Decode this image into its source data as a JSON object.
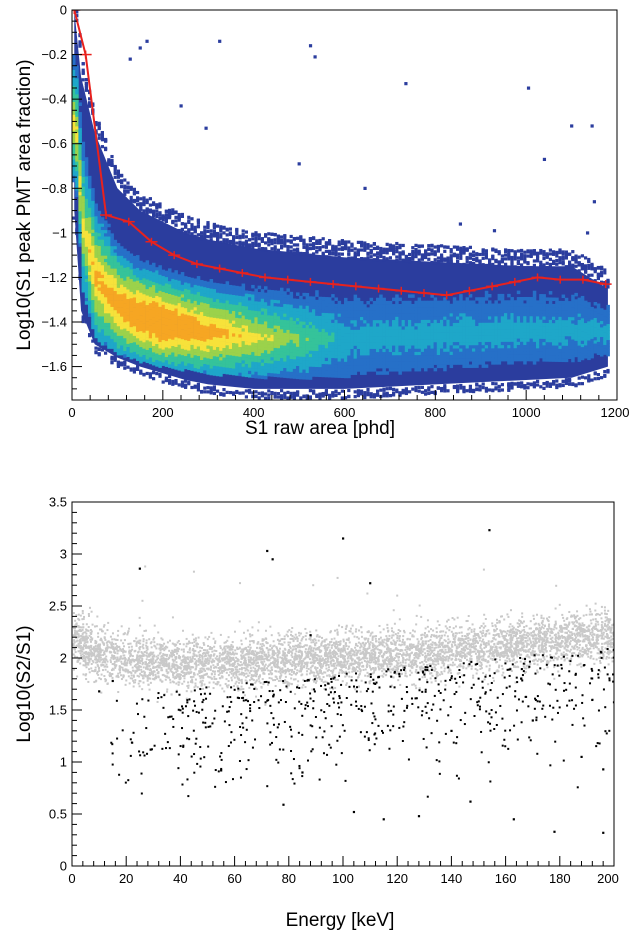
{
  "chart_data": [
    {
      "type": "heatmap",
      "xlabel": "S1 raw area [phd]",
      "ylabel": "Log10(S1 peak PMT area fraction)",
      "xlim": [
        0,
        1200
      ],
      "ylim": [
        -1.75,
        0
      ],
      "x_ticks": [
        "0",
        "200",
        "400",
        "600",
        "800",
        "1000",
        "1200"
      ],
      "y_ticks": [
        "0",
        "−0.2",
        "−0.4",
        "−0.6",
        "−0.8",
        "−1",
        "−1.2",
        "−1.4",
        "−1.6"
      ],
      "grid": false,
      "legend": "none",
      "colormap": [
        "#2b3d9e",
        "#2670c8",
        "#1ea7c9",
        "#35c39a",
        "#9bd24b",
        "#f7e23a",
        "#f6a623"
      ],
      "density_band": {
        "x": [
          5,
          20,
          50,
          100,
          150,
          200,
          250,
          300,
          400,
          500,
          600,
          700,
          800,
          900,
          1000,
          1100,
          1180
        ],
        "center": [
          -0.5,
          -0.95,
          -1.2,
          -1.32,
          -1.37,
          -1.4,
          -1.42,
          -1.44,
          -1.46,
          -1.47,
          -1.47,
          -1.46,
          -1.45,
          -1.44,
          -1.43,
          -1.43,
          -1.44
        ],
        "upper": [
          0,
          -0.3,
          -0.55,
          -0.8,
          -0.9,
          -0.95,
          -1.0,
          -1.03,
          -1.07,
          -1.09,
          -1.11,
          -1.12,
          -1.13,
          -1.14,
          -1.15,
          -1.15,
          -1.25
        ],
        "lower": [
          -0.9,
          -1.35,
          -1.5,
          -1.56,
          -1.6,
          -1.63,
          -1.66,
          -1.68,
          -1.7,
          -1.7,
          -1.7,
          -1.69,
          -1.68,
          -1.67,
          -1.66,
          -1.65,
          -1.6
        ]
      },
      "outliers": [
        {
          "x": 165,
          "y": -0.14
        },
        {
          "x": 150,
          "y": -0.17
        },
        {
          "x": 128,
          "y": -0.22
        },
        {
          "x": 325,
          "y": -0.14
        },
        {
          "x": 525,
          "y": -0.16
        },
        {
          "x": 535,
          "y": -0.21
        },
        {
          "x": 735,
          "y": -0.33
        },
        {
          "x": 500,
          "y": -0.69
        },
        {
          "x": 1040,
          "y": -0.67
        },
        {
          "x": 1100,
          "y": -0.52
        },
        {
          "x": 1145,
          "y": -0.52
        },
        {
          "x": 1150,
          "y": -0.86
        },
        {
          "x": 1135,
          "y": -1.0
        },
        {
          "x": 295,
          "y": -0.53
        },
        {
          "x": 240,
          "y": -0.43
        },
        {
          "x": 855,
          "y": -0.96
        },
        {
          "x": 930,
          "y": -0.99
        },
        {
          "x": 645,
          "y": -0.8
        },
        {
          "x": 1005,
          "y": -0.35
        }
      ],
      "series": [
        {
          "x": [
            5,
            30,
            75,
            125,
            175,
            225,
            275,
            325,
            375,
            425,
            475,
            525,
            575,
            625,
            675,
            725,
            775,
            825,
            875,
            925,
            975,
            1025,
            1075,
            1125,
            1175
          ],
          "y": [
            0,
            -0.2,
            -0.92,
            -0.95,
            -1.04,
            -1.1,
            -1.14,
            -1.16,
            -1.18,
            -1.2,
            -1.21,
            -1.22,
            -1.23,
            -1.24,
            -1.25,
            -1.26,
            -1.27,
            -1.28,
            -1.26,
            -1.24,
            -1.22,
            -1.2,
            -1.21,
            -1.21,
            -1.23
          ],
          "color": "#e8221e"
        }
      ]
    },
    {
      "type": "scatter",
      "xlabel": "Energy [keV]",
      "ylabel": "Log10(S2/S1)",
      "xlim": [
        0,
        200
      ],
      "ylim": [
        0,
        3.5
      ],
      "x_ticks": [
        "0",
        "20",
        "40",
        "60",
        "80",
        "100",
        "120",
        "140",
        "160",
        "180",
        "200"
      ],
      "y_ticks": [
        "0",
        "0.5",
        "1",
        "1.5",
        "2",
        "2.5",
        "3",
        "3.5"
      ],
      "grid": false,
      "legend": "none",
      "series": [
        {
          "color": "#c9c9c9",
          "band": {
            "x": [
              1,
              5,
              10,
              20,
              40,
              60,
              80,
              100,
              120,
              140,
              160,
              180,
              200
            ],
            "center": [
              2.2,
              2.1,
              2.02,
              1.98,
              1.95,
              1.95,
              1.97,
              2.0,
              2.03,
              2.07,
              2.12,
              2.18,
              2.22
            ],
            "spread": [
              0.25,
              0.25,
              0.25,
              0.23,
              0.22,
              0.22,
              0.22,
              0.22,
              0.22,
              0.22,
              0.22,
              0.22,
              0.22
            ]
          },
          "sparse_points": [
            {
              "x": 27,
              "y": 2.88
            },
            {
              "x": 45,
              "y": 2.83
            },
            {
              "x": 62,
              "y": 2.72
            },
            {
              "x": 89,
              "y": 2.7
            },
            {
              "x": 98,
              "y": 2.77
            },
            {
              "x": 109,
              "y": 2.62
            },
            {
              "x": 152,
              "y": 2.85
            },
            {
              "x": 26,
              "y": 2.55
            },
            {
              "x": 120,
              "y": 2.6
            }
          ]
        },
        {
          "color": "#000000",
          "points": [
            {
              "x": 25,
              "y": 2.86
            },
            {
              "x": 72,
              "y": 3.03
            },
            {
              "x": 74,
              "y": 2.95
            },
            {
              "x": 100,
              "y": 3.15
            },
            {
              "x": 154,
              "y": 3.23
            },
            {
              "x": 110,
              "y": 2.72
            },
            {
              "x": 88,
              "y": 2.22
            },
            {
              "x": 29,
              "y": 1.12
            },
            {
              "x": 55,
              "y": 0.92
            },
            {
              "x": 78,
              "y": 0.59
            },
            {
              "x": 104,
              "y": 0.52
            },
            {
              "x": 128,
              "y": 0.48
            },
            {
              "x": 163,
              "y": 0.45
            },
            {
              "x": 178,
              "y": 0.33
            },
            {
              "x": 196,
              "y": 0.32
            },
            {
              "x": 196,
              "y": 0.93
            },
            {
              "x": 188,
              "y": 1.05
            },
            {
              "x": 115,
              "y": 0.45
            },
            {
              "x": 147,
              "y": 0.62
            },
            {
              "x": 85,
              "y": 0.9
            },
            {
              "x": 10,
              "y": 1.68
            },
            {
              "x": 15,
              "y": 1.78
            },
            {
              "x": 170,
              "y": 1.4
            },
            {
              "x": 140,
              "y": 1.3
            }
          ],
          "cloud": {
            "x_range": [
              10,
              200
            ],
            "y_range": [
              0.6,
              2.1
            ],
            "count": 700
          }
        }
      ]
    }
  ]
}
